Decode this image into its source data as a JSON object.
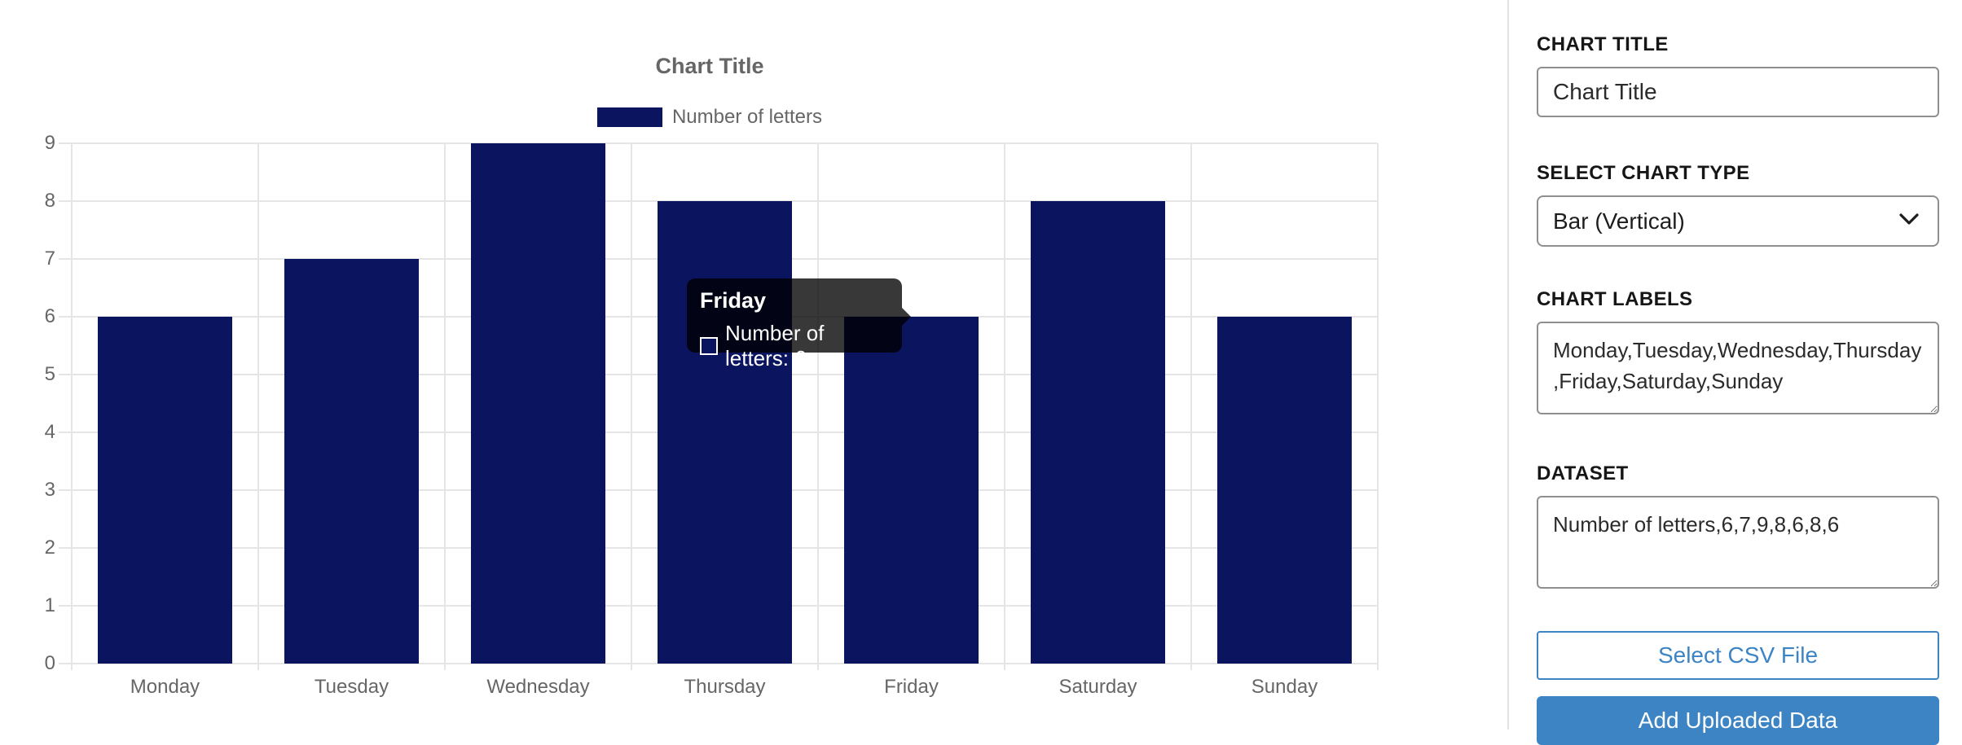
{
  "chart_data": {
    "type": "bar",
    "title": "Chart Title",
    "categories": [
      "Monday",
      "Tuesday",
      "Wednesday",
      "Thursday",
      "Friday",
      "Saturday",
      "Sunday"
    ],
    "series": [
      {
        "name": "Number of letters",
        "values": [
          6,
          7,
          9,
          8,
          6,
          8,
          6
        ]
      }
    ],
    "xlabel": "",
    "ylabel": "",
    "ylim": [
      0,
      9
    ],
    "yticks": [
      0,
      1,
      2,
      3,
      4,
      5,
      6,
      7,
      8,
      9
    ],
    "grid": true,
    "legend_position": "top",
    "bar_color": "#0b145f",
    "axis_text_color": "#666666",
    "grid_color": "#e5e5e5"
  },
  "tooltip": {
    "title": "Friday",
    "label": "Number of letters: 6",
    "swatch_color": "#0b145f"
  },
  "sidebar": {
    "chart_title": {
      "label": "CHART TITLE",
      "value": "Chart Title"
    },
    "chart_type": {
      "label": "SELECT CHART TYPE",
      "value": "Bar (Vertical)"
    },
    "chart_labels": {
      "label": "CHART LABELS",
      "value": "Monday,Tuesday,Wednesday,Thursday,Friday,Saturday,Sunday"
    },
    "dataset": {
      "label": "DATASET",
      "value": "Number of letters,6,7,9,8,6,8,6"
    },
    "select_csv_button": "Select CSV File",
    "add_dataset_button": "Add Uploaded Data",
    "accent_color": "#3c84c4"
  }
}
